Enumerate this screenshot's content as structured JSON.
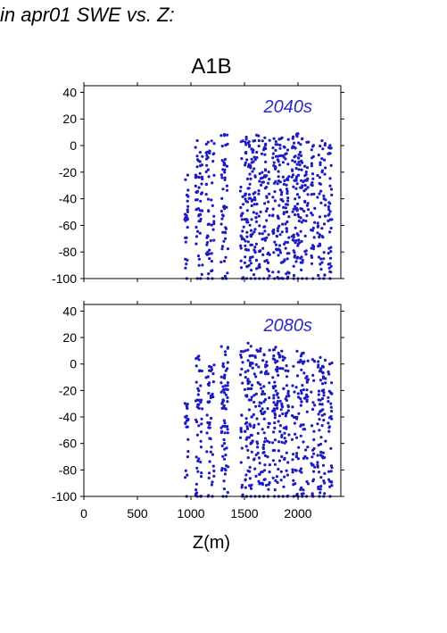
{
  "page_title": "in apr01 SWE vs. Z:",
  "colors": {
    "points": "#1c1cc4",
    "frame": "#000000",
    "panel_label": "#2a2ac8"
  },
  "chart_data": [
    {
      "type": "scatter",
      "title": "A1B",
      "panel_label": "2040s",
      "xlabel": "",
      "ylabel": "",
      "xlim": [
        0,
        2400
      ],
      "ylim": [
        -100,
        45
      ],
      "yticks": [
        40,
        20,
        0,
        -20,
        -40,
        -60,
        -80,
        -100
      ],
      "xticks": [
        0,
        500,
        1000,
        1500,
        2000
      ],
      "show_x_tick_labels": false,
      "grid": false,
      "series": [
        {
          "columns": [
            {
              "z": 960,
              "top": -20
            },
            {
              "z": 1060,
              "top": 7
            },
            {
              "z": 1090,
              "top": -5
            },
            {
              "z": 1160,
              "top": 3
            },
            {
              "z": 1200,
              "top": 4
            },
            {
              "z": 1300,
              "top": 8
            },
            {
              "z": 1330,
              "top": 9
            },
            {
              "z": 1480,
              "top": 7
            },
            {
              "z": 1520,
              "top": 8
            },
            {
              "z": 1560,
              "top": 9
            },
            {
              "z": 1600,
              "top": 10
            },
            {
              "z": 1640,
              "top": 9
            },
            {
              "z": 1680,
              "top": 8
            },
            {
              "z": 1720,
              "top": 6
            },
            {
              "z": 1780,
              "top": 8
            },
            {
              "z": 1820,
              "top": 7
            },
            {
              "z": 1860,
              "top": 8
            },
            {
              "z": 1900,
              "top": 9
            },
            {
              "z": 1960,
              "top": 7
            },
            {
              "z": 2000,
              "top": 9
            },
            {
              "z": 2040,
              "top": 8
            },
            {
              "z": 2080,
              "top": 7
            },
            {
              "z": 2140,
              "top": 6
            },
            {
              "z": 2200,
              "top": 4
            },
            {
              "z": 2240,
              "top": 5
            },
            {
              "z": 2300,
              "top": 2
            }
          ]
        }
      ]
    },
    {
      "type": "scatter",
      "title": "",
      "panel_label": "2080s",
      "xlabel": "Z(m)",
      "ylabel": "",
      "xlim": [
        0,
        2400
      ],
      "ylim": [
        -100,
        45
      ],
      "yticks": [
        40,
        20,
        0,
        -20,
        -40,
        -60,
        -80,
        -100
      ],
      "xticks": [
        0,
        500,
        1000,
        1500,
        2000
      ],
      "show_x_tick_labels": true,
      "grid": false,
      "series": [
        {
          "columns": [
            {
              "z": 960,
              "top": -25
            },
            {
              "z": 1060,
              "top": 9
            },
            {
              "z": 1090,
              "top": -5
            },
            {
              "z": 1160,
              "top": 3
            },
            {
              "z": 1200,
              "top": 2
            },
            {
              "z": 1300,
              "top": 15
            },
            {
              "z": 1330,
              "top": 14
            },
            {
              "z": 1480,
              "top": 13
            },
            {
              "z": 1520,
              "top": 16
            },
            {
              "z": 1560,
              "top": 14
            },
            {
              "z": 1600,
              "top": 15
            },
            {
              "z": 1640,
              "top": 12
            },
            {
              "z": 1680,
              "top": 10
            },
            {
              "z": 1720,
              "top": 11
            },
            {
              "z": 1780,
              "top": 13
            },
            {
              "z": 1820,
              "top": 10
            },
            {
              "z": 1860,
              "top": 12
            },
            {
              "z": 1900,
              "top": 9
            },
            {
              "z": 1960,
              "top": 8
            },
            {
              "z": 2000,
              "top": 10
            },
            {
              "z": 2040,
              "top": 9
            },
            {
              "z": 2080,
              "top": 7
            },
            {
              "z": 2140,
              "top": 6
            },
            {
              "z": 2200,
              "top": 5
            },
            {
              "z": 2240,
              "top": 3
            },
            {
              "z": 2300,
              "top": 2
            }
          ]
        }
      ]
    }
  ]
}
